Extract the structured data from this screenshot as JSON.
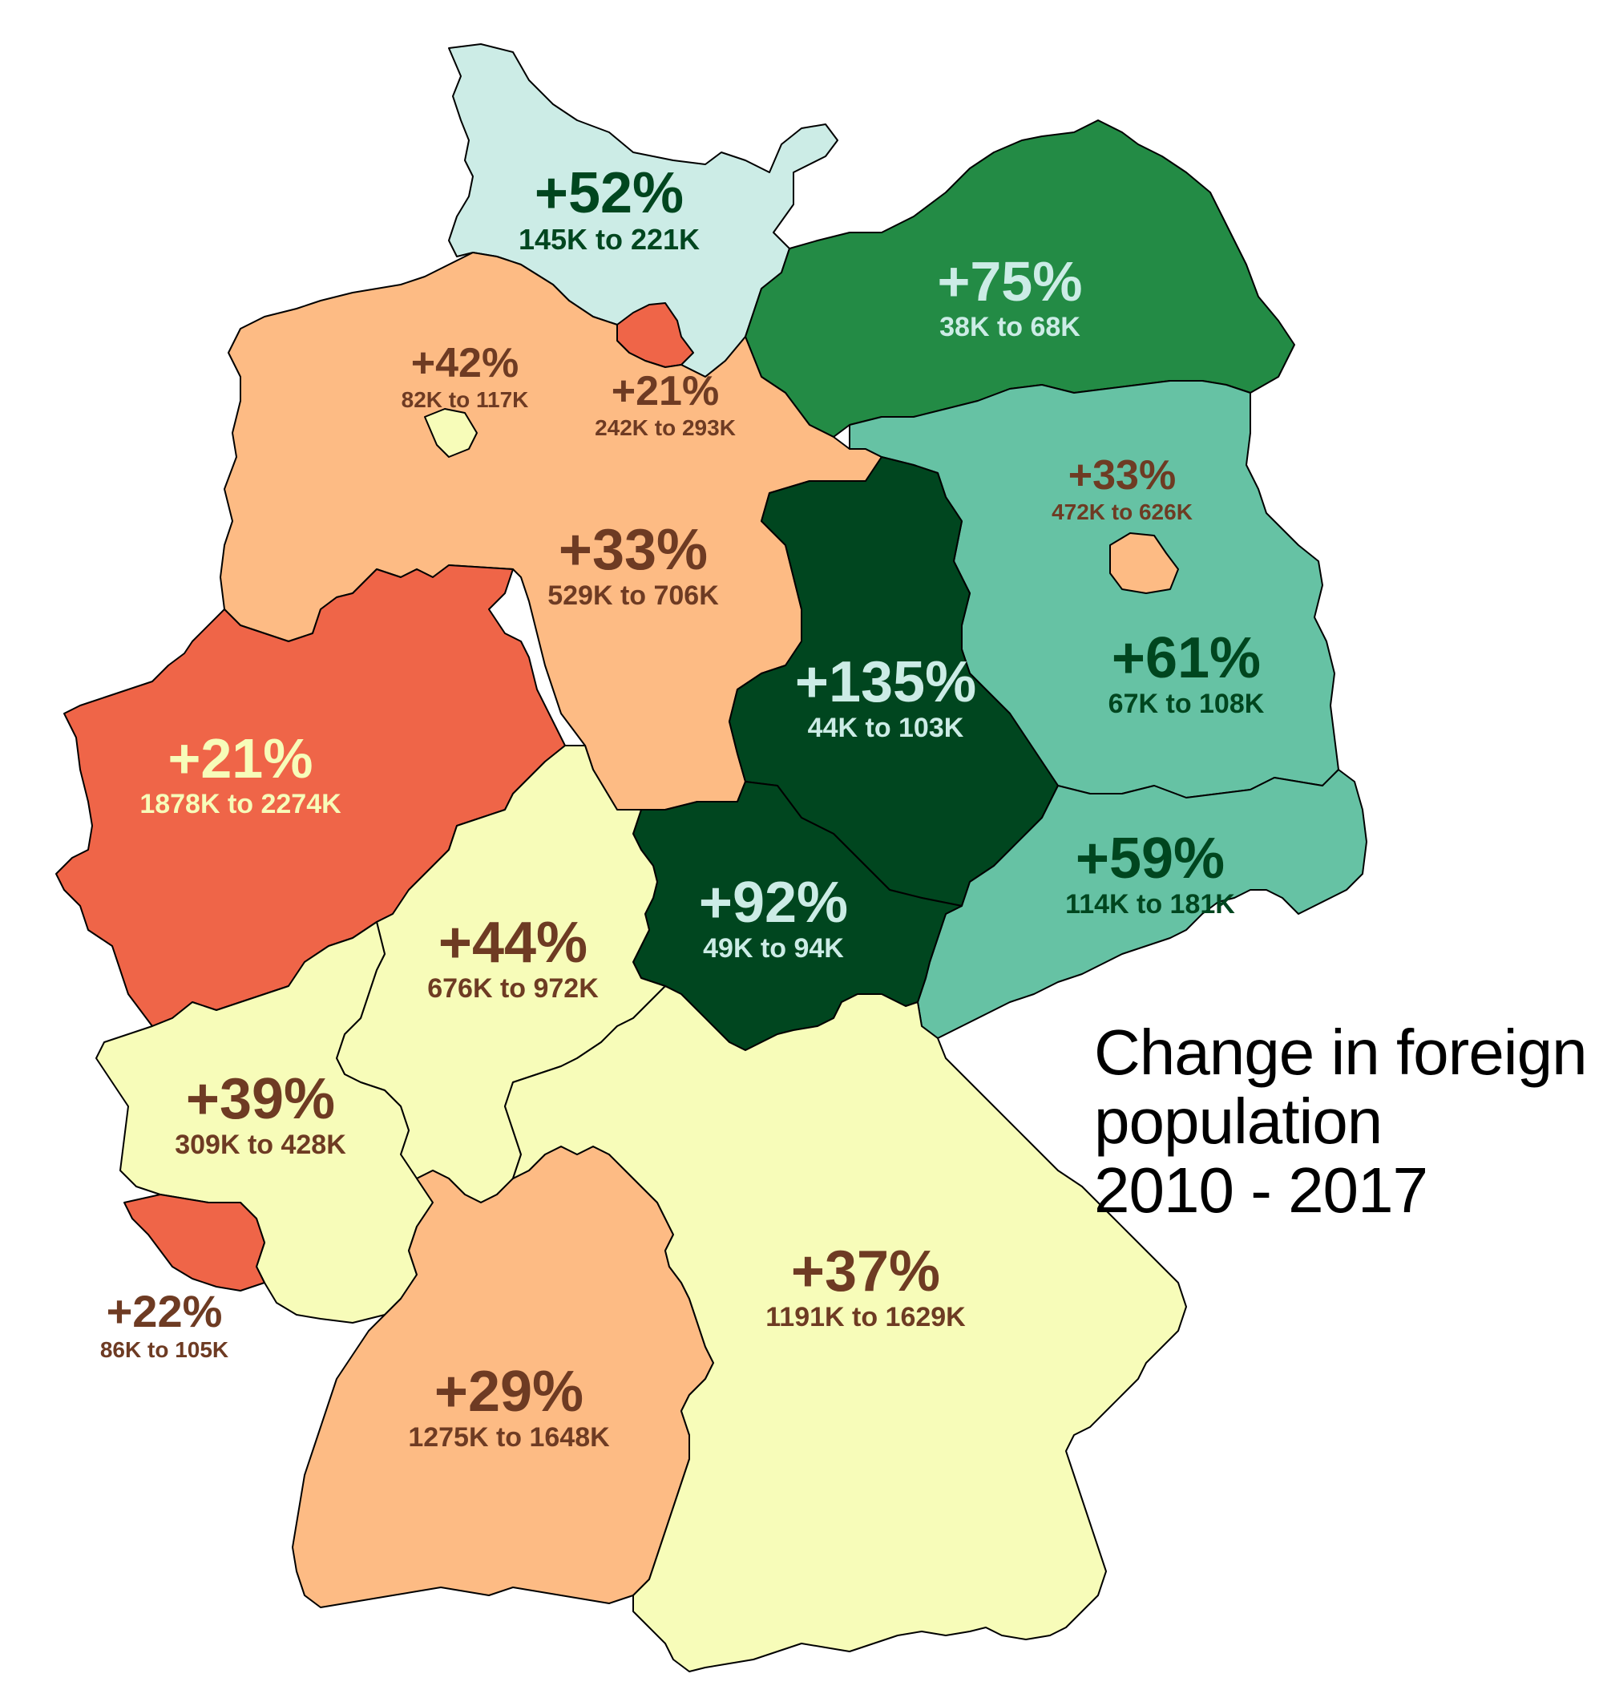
{
  "title": {
    "lines": [
      "Change in foreign",
      "population",
      "2010 - 2017"
    ]
  },
  "colors": {
    "dark_green": "#00461f",
    "green": "#238b45",
    "teal": "#66c2a4",
    "mint": "#ccece6",
    "cream": "#f7fcb9",
    "peach": "#fdbb84",
    "red_orange": "#ef6548",
    "label_brown": "#6e3b23",
    "label_light": "#f7fcb9",
    "label_mint": "#ccece6",
    "label_darkgreen": "#00461f"
  },
  "regions": [
    {
      "id": "schleswig-holstein",
      "pct": "+52%",
      "range": "145K to 221K",
      "fill": "mint",
      "label_color": "label_darkgreen",
      "from_k": 145,
      "to_k": 221
    },
    {
      "id": "mecklenburg-vorpommern",
      "pct": "+75%",
      "range": "38K to 68K",
      "fill": "green",
      "label_color": "label_mint",
      "from_k": 38,
      "to_k": 68
    },
    {
      "id": "hamburg",
      "pct": "+21%",
      "range": "242K to 293K",
      "fill": "red_orange",
      "label_color": "label_brown",
      "from_k": 242,
      "to_k": 293
    },
    {
      "id": "bremen",
      "pct": "+42%",
      "range": "82K to 117K",
      "fill": "cream",
      "label_color": "label_brown",
      "from_k": 82,
      "to_k": 117
    },
    {
      "id": "niedersachsen",
      "pct": "+33%",
      "range": "529K to 706K",
      "fill": "peach",
      "label_color": "label_brown",
      "from_k": 529,
      "to_k": 706
    },
    {
      "id": "berlin",
      "pct": "+33%",
      "range": "472K to 626K",
      "fill": "peach",
      "label_color": "label_brown",
      "from_k": 472,
      "to_k": 626
    },
    {
      "id": "brandenburg",
      "pct": "+61%",
      "range": "67K to 108K",
      "fill": "teal",
      "label_color": "label_darkgreen",
      "from_k": 67,
      "to_k": 108
    },
    {
      "id": "sachsen-anhalt",
      "pct": "+135%",
      "range": "44K to 103K",
      "fill": "dark_green",
      "label_color": "label_mint",
      "from_k": 44,
      "to_k": 103
    },
    {
      "id": "nordrhein-westfalen",
      "pct": "+21%",
      "range": "1878K to 2274K",
      "fill": "red_orange",
      "label_color": "label_light",
      "from_k": 1878,
      "to_k": 2274
    },
    {
      "id": "sachsen",
      "pct": "+59%",
      "range": "114K to 181K",
      "fill": "teal",
      "label_color": "label_darkgreen",
      "from_k": 114,
      "to_k": 181
    },
    {
      "id": "thueringen",
      "pct": "+92%",
      "range": "49K to 94K",
      "fill": "dark_green",
      "label_color": "label_mint",
      "from_k": 49,
      "to_k": 94
    },
    {
      "id": "hessen",
      "pct": "+44%",
      "range": "676K to 972K",
      "fill": "cream",
      "label_color": "label_brown",
      "from_k": 676,
      "to_k": 972
    },
    {
      "id": "rheinland-pfalz",
      "pct": "+39%",
      "range": "309K to 428K",
      "fill": "cream",
      "label_color": "label_brown",
      "from_k": 309,
      "to_k": 428
    },
    {
      "id": "saarland",
      "pct": "+22%",
      "range": "86K to 105K",
      "fill": "red_orange",
      "label_color": "label_brown",
      "from_k": 86,
      "to_k": 105
    },
    {
      "id": "bayern",
      "pct": "+37%",
      "range": "1191K to 1629K",
      "fill": "cream",
      "label_color": "label_brown",
      "from_k": 1191,
      "to_k": 1629
    },
    {
      "id": "baden-wuerttemberg",
      "pct": "+29%",
      "range": "1275K to 1648K",
      "fill": "peach",
      "label_color": "label_brown",
      "from_k": 1275,
      "to_k": 1648
    }
  ]
}
